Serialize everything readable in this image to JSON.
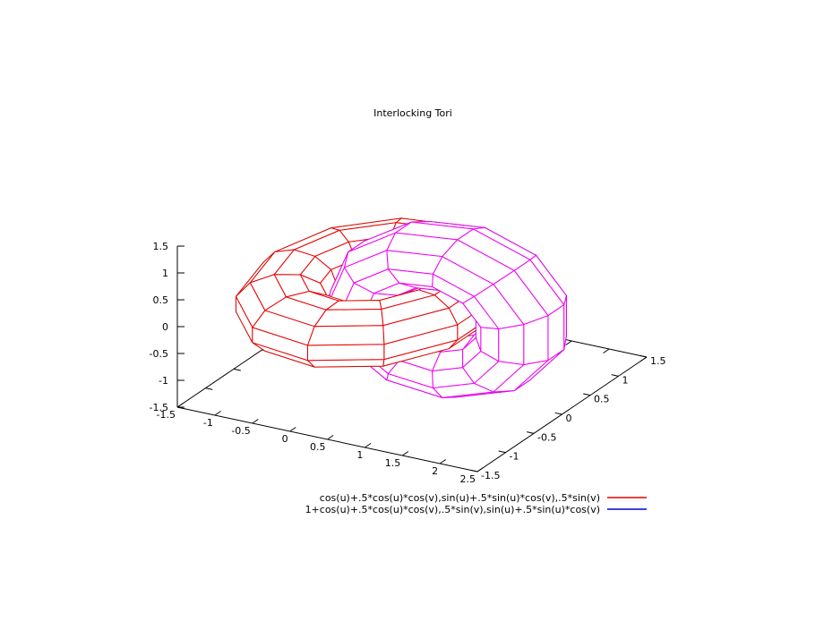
{
  "title": "Interlocking Tori",
  "chart_data": {
    "type": "surface3d-parametric",
    "title": "Interlocking Tori",
    "hidden3d": true,
    "view": "60 rot_x, 30 rot_z (gnuplot default)",
    "isosamples": 12,
    "u_range": [
      -3.14159265358979,
      3.14159265358979
    ],
    "v_range": [
      -3.14159265358979,
      3.14159265358979
    ],
    "series": [
      {
        "label": "cos(u)+.5*cos(u)*cos(v),sin(u)+.5*sin(u)*cos(v),.5*sin(v)",
        "model": "torus_axis_z",
        "x_offset": 0,
        "R": 1,
        "r": 0.5,
        "color_top": "#e60000",
        "color_bottom": "#00c000",
        "legend_color": "#e60000"
      },
      {
        "label": "1+cos(u)+.5*cos(u)*cos(v),.5*sin(v),sin(u)+.5*sin(u)*cos(v)",
        "model": "torus_axis_y",
        "x_offset": 1,
        "R": 1,
        "r": 0.5,
        "color_top": "#0000d0",
        "color_bottom": "#f000f0",
        "legend_color": "#0000d0"
      }
    ],
    "axes": {
      "x": {
        "range": [
          -1.5,
          2.5
        ],
        "tick_labels": [
          "-1.5",
          "-1",
          "-0.5",
          "0",
          "0.5",
          "1",
          "1.5",
          "2",
          "2.5"
        ]
      },
      "y": {
        "range": [
          -1.5,
          1.5
        ],
        "tick_labels": [
          "-1.5",
          "-1",
          "-0.5",
          "0",
          "0.5",
          "1",
          "1.5"
        ]
      },
      "z": {
        "range": [
          -1.5,
          1.5
        ],
        "tick_labels": [
          "-1.5",
          "-1",
          "-0.5",
          "0",
          "0.5",
          "1",
          "1.5"
        ]
      }
    },
    "colors": {
      "axis": "#000000",
      "text": "#000000",
      "surface_fill": "#ffffff"
    }
  }
}
